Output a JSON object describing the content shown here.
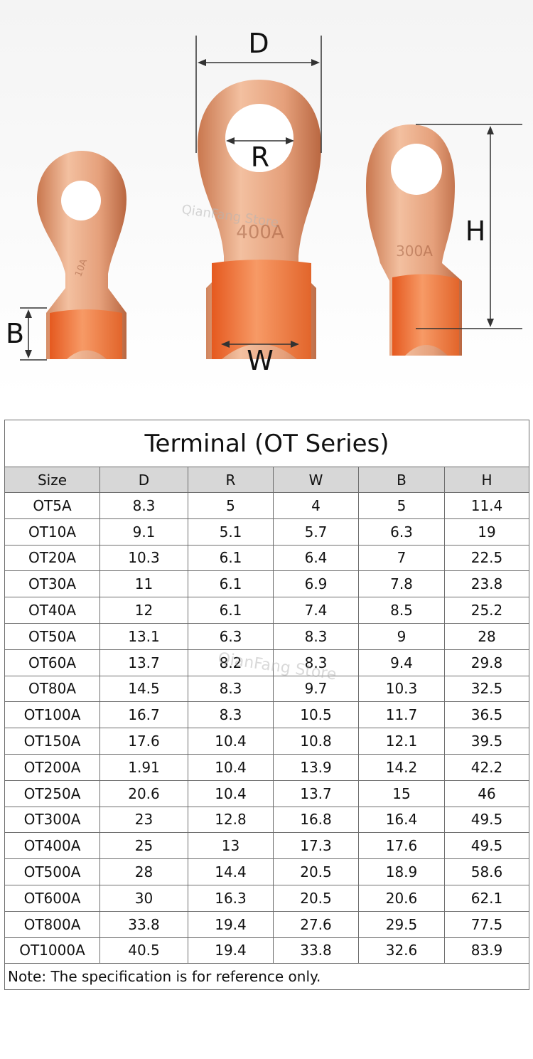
{
  "photo": {
    "dim_labels": {
      "d": "D",
      "r": "R",
      "h": "H",
      "b": "B",
      "w": "W"
    },
    "stamps": {
      "middle_rating": "400A",
      "right_rating": "300A",
      "left_rating": "10A"
    },
    "watermark": "QianFang Store",
    "colors": {
      "copper_light": "#f1b895",
      "copper_mid": "#d98a62",
      "copper_dark": "#b85e36",
      "inner_orange": "#f07a3c"
    }
  },
  "table": {
    "title": "Terminal (OT Series)",
    "columns": [
      "Size",
      "D",
      "R",
      "W",
      "B",
      "H"
    ],
    "rows": [
      [
        "OT5A",
        "8.3",
        "5",
        "4",
        "5",
        "11.4"
      ],
      [
        "OT10A",
        "9.1",
        "5.1",
        "5.7",
        "6.3",
        "19"
      ],
      [
        "OT20A",
        "10.3",
        "6.1",
        "6.4",
        "7",
        "22.5"
      ],
      [
        "OT30A",
        "11",
        "6.1",
        "6.9",
        "7.8",
        "23.8"
      ],
      [
        "OT40A",
        "12",
        "6.1",
        "7.4",
        "8.5",
        "25.2"
      ],
      [
        "OT50A",
        "13.1",
        "6.3",
        "8.3",
        "9",
        "28"
      ],
      [
        "OT60A",
        "13.7",
        "8.2",
        "8.3",
        "9.4",
        "29.8"
      ],
      [
        "OT80A",
        "14.5",
        "8.3",
        "9.7",
        "10.3",
        "32.5"
      ],
      [
        "OT100A",
        "16.7",
        "8.3",
        "10.5",
        "11.7",
        "36.5"
      ],
      [
        "OT150A",
        "17.6",
        "10.4",
        "10.8",
        "12.1",
        "39.5"
      ],
      [
        "OT200A",
        "1.91",
        "10.4",
        "13.9",
        "14.2",
        "42.2"
      ],
      [
        "OT250A",
        "20.6",
        "10.4",
        "13.7",
        "15",
        "46"
      ],
      [
        "OT300A",
        "23",
        "12.8",
        "16.8",
        "16.4",
        "49.5"
      ],
      [
        "OT400A",
        "25",
        "13",
        "17.3",
        "17.6",
        "49.5"
      ],
      [
        "OT500A",
        "28",
        "14.4",
        "20.5",
        "18.9",
        "58.6"
      ],
      [
        "OT600A",
        "30",
        "16.3",
        "20.5",
        "20.6",
        "62.1"
      ],
      [
        "OT800A",
        "33.8",
        "19.4",
        "27.6",
        "29.5",
        "77.5"
      ],
      [
        "OT1000A",
        "40.5",
        "19.4",
        "33.8",
        "32.6",
        "83.9"
      ]
    ],
    "note": "Note: The specification is for reference only.",
    "watermark": "QianFang Store",
    "colors": {
      "header_bg": "#d7d7d7",
      "border": "#6d6d6d"
    }
  }
}
